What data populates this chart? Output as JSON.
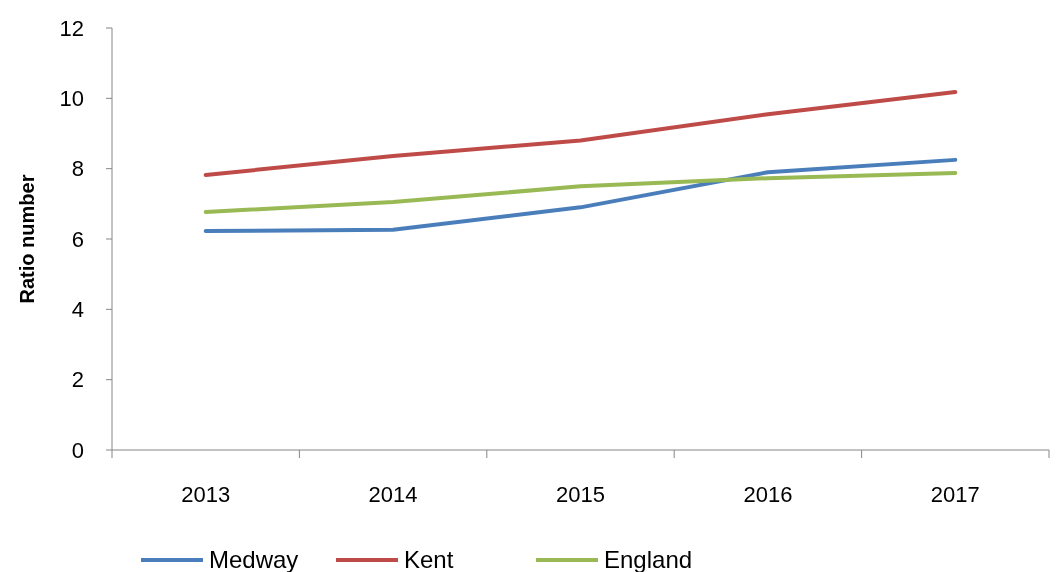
{
  "chart_data": {
    "type": "line",
    "ylabel": "Ratio number",
    "categories": [
      "2013",
      "2014",
      "2015",
      "2016",
      "2017"
    ],
    "series": [
      {
        "name": "Medway",
        "color": "#4a7ebb",
        "values": [
          6.23,
          6.26,
          6.9,
          7.9,
          8.25
        ]
      },
      {
        "name": "Kent",
        "color": "#be4b48",
        "values": [
          7.82,
          8.36,
          8.8,
          9.55,
          10.18
        ]
      },
      {
        "name": "England",
        "color": "#98b954",
        "values": [
          6.77,
          7.05,
          7.5,
          7.73,
          7.88
        ]
      }
    ],
    "ylim": [
      0,
      12
    ],
    "yticks": [
      0,
      2,
      4,
      6,
      8,
      10,
      12
    ],
    "grid": false,
    "legend": "bottom",
    "marker": "none",
    "line_style": "solid"
  }
}
